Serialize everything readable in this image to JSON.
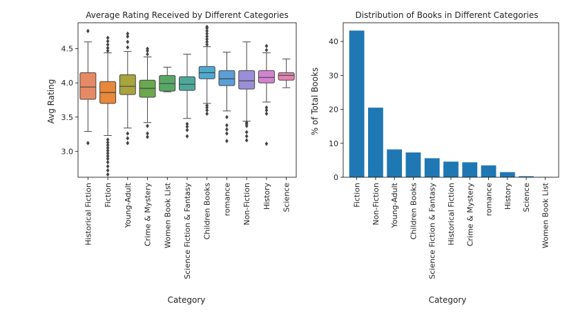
{
  "chart_data": [
    {
      "type": "box",
      "title": "Average Rating Received by Different Categories",
      "xlabel": "Category",
      "ylabel": "Avg Rating",
      "ylim": [
        2.62,
        4.88
      ],
      "yticks": [
        3.0,
        3.5,
        4.0,
        4.5
      ],
      "ytick_labels": [
        "3.0",
        "3.5",
        "4.0",
        "4.5"
      ],
      "grid": false,
      "categories": [
        "Historical Fiction",
        "Fiction",
        "Young-Adult",
        "Crime & Mystery",
        "Women Book List",
        "Science Fiction & Fantasy",
        "Children Books",
        "romance",
        "Non-Fiction",
        "History",
        "Science"
      ],
      "colors": [
        "#e58a64",
        "#e8883a",
        "#a8a43e",
        "#6aa84e",
        "#58a865",
        "#4ea89a",
        "#4eaad0",
        "#5a9fd8",
        "#9b8ed8",
        "#d283d0",
        "#e283b0"
      ],
      "boxes": [
        {
          "whislo": 3.29,
          "q1": 3.76,
          "med": 3.94,
          "q3": 4.15,
          "whishi": 4.6,
          "fliers": [
            3.12,
            4.76
          ]
        },
        {
          "whislo": 3.23,
          "q1": 3.7,
          "med": 3.86,
          "q3": 4.02,
          "whishi": 4.44,
          "fliers": [
            2.66,
            2.72,
            2.78,
            2.84,
            2.89,
            2.93,
            2.97,
            3.01,
            3.05,
            3.09,
            3.13,
            3.17,
            4.47,
            4.51,
            4.56,
            4.61,
            4.66
          ]
        },
        {
          "whislo": 3.34,
          "q1": 3.83,
          "med": 3.95,
          "q3": 4.12,
          "whishi": 4.46,
          "fliers": [
            3.12,
            3.19,
            3.26,
            4.52,
            4.6,
            4.68,
            4.72
          ]
        },
        {
          "whislo": 3.42,
          "q1": 3.79,
          "med": 3.92,
          "q3": 4.04,
          "whishi": 4.38,
          "fliers": [
            3.21,
            3.26,
            3.37,
            4.42,
            4.47,
            4.5
          ]
        },
        {
          "whislo": 3.87,
          "q1": 3.88,
          "med": 3.99,
          "q3": 4.11,
          "whishi": 4.23,
          "fliers": []
        },
        {
          "whislo": 3.48,
          "q1": 3.89,
          "med": 3.98,
          "q3": 4.09,
          "whishi": 4.42,
          "fliers": [
            3.22,
            3.31,
            3.36,
            3.4
          ]
        },
        {
          "whislo": 3.7,
          "q1": 4.06,
          "med": 4.15,
          "q3": 4.24,
          "whishi": 4.53,
          "fliers": [
            3.55,
            3.6,
            3.64,
            3.67,
            4.56,
            4.6,
            4.64,
            4.68,
            4.72,
            4.76,
            4.8,
            4.82
          ]
        },
        {
          "whislo": 3.59,
          "q1": 3.96,
          "med": 4.06,
          "q3": 4.18,
          "whishi": 4.45,
          "fliers": [
            3.15,
            3.26,
            3.32,
            3.38,
            3.5
          ]
        },
        {
          "whislo": 3.44,
          "q1": 3.91,
          "med": 4.03,
          "q3": 4.18,
          "whishi": 4.6,
          "fliers": [
            3.16,
            3.22,
            3.28,
            3.37,
            3.4,
            3.42
          ]
        },
        {
          "whislo": 3.72,
          "q1": 4.0,
          "med": 4.08,
          "q3": 4.18,
          "whishi": 4.44,
          "fliers": [
            3.11,
            3.55,
            3.6,
            3.64,
            4.48,
            4.54
          ]
        },
        {
          "whislo": 3.93,
          "q1": 4.04,
          "med": 4.11,
          "q3": 4.15,
          "whishi": 4.35,
          "fliers": []
        }
      ]
    },
    {
      "type": "bar",
      "title": "Distribution of Books in Different Categories",
      "xlabel": "Category",
      "ylabel": "% of Total Books",
      "ylim": [
        0,
        45.5
      ],
      "yticks": [
        0,
        10,
        20,
        30,
        40
      ],
      "ytick_labels": [
        "0",
        "10",
        "20",
        "30",
        "40"
      ],
      "grid": false,
      "color": "#1f77b4",
      "categories": [
        "Fiction",
        "Non-Fiction",
        "Young-Adult",
        "Children Books",
        "Science Fiction & Fantasy",
        "Historical Fiction",
        "Crime & Mystery",
        "romance",
        "History",
        "Science",
        "Women Book List"
      ],
      "values": [
        43.2,
        20.5,
        8.2,
        7.3,
        5.6,
        4.6,
        4.4,
        3.5,
        1.5,
        0.3,
        0.1
      ]
    }
  ]
}
